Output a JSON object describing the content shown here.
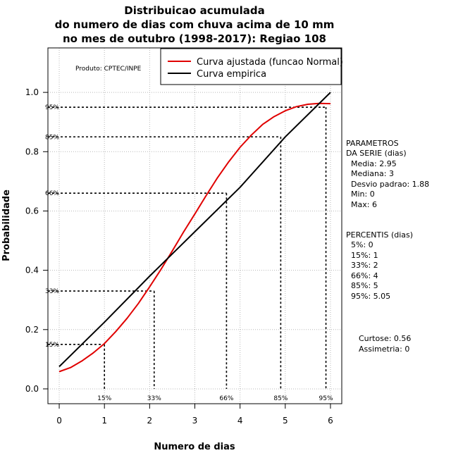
{
  "chart_data": {
    "type": "line",
    "title_lines": [
      "Distribuicao acumulada",
      "do numero de dias com chuva acima de 10 mm",
      "no mes de outubro (1998-2017): Regiao 108"
    ],
    "xlabel": "Numero de dias",
    "ylabel": "Probabilidade",
    "xlim": [
      -0.25,
      6.25
    ],
    "ylim": [
      -0.05,
      1.15
    ],
    "x_ticks": [
      0,
      1,
      2,
      3,
      4,
      5,
      6
    ],
    "y_ticks": [
      0.0,
      0.2,
      0.4,
      0.6,
      0.8,
      1.0
    ],
    "x_tick_labels": [
      "0",
      "1",
      "2",
      "3",
      "4",
      "5",
      "6"
    ],
    "y_tick_labels": [
      "0.0",
      "0.2",
      "0.4",
      "0.6",
      "0.8",
      "1.0"
    ],
    "grid": true,
    "producer_note": "Produto: CPTEC/INPE",
    "legend": {
      "position": "top-right",
      "entries": [
        {
          "name": "Curva ajustada (funcao Normal)",
          "color": "#e00000"
        },
        {
          "name": "Curva empirica",
          "color": "#000000"
        }
      ]
    },
    "series": [
      {
        "name": "Curva ajustada (funcao Normal)",
        "color": "#e00000",
        "x": [
          0,
          0.25,
          0.5,
          0.75,
          1.0,
          1.25,
          1.5,
          1.75,
          2.0,
          2.25,
          2.5,
          2.75,
          3.0,
          3.25,
          3.5,
          3.75,
          4.0,
          4.25,
          4.5,
          4.75,
          5.0,
          5.25,
          5.5,
          5.75,
          6.0
        ],
        "y": [
          0.058,
          0.072,
          0.094,
          0.121,
          0.153,
          0.193,
          0.238,
          0.288,
          0.344,
          0.403,
          0.465,
          0.529,
          0.59,
          0.652,
          0.712,
          0.766,
          0.815,
          0.856,
          0.892,
          0.918,
          0.938,
          0.952,
          0.96,
          0.963,
          0.962
        ]
      },
      {
        "name": "Curva empirica",
        "color": "#000000",
        "x": [
          0,
          1,
          2,
          3,
          4,
          5,
          6
        ],
        "y": [
          0.075,
          0.225,
          0.38,
          0.53,
          0.68,
          0.85,
          1.0
        ]
      }
    ],
    "percentile_markers": [
      {
        "label": "15%",
        "x": 1.0,
        "y": 0.15
      },
      {
        "label": "33%",
        "x": 2.1,
        "y": 0.33
      },
      {
        "label": "66%",
        "x": 3.7,
        "y": 0.66
      },
      {
        "label": "85%",
        "x": 4.9,
        "y": 0.85
      },
      {
        "label": "95%",
        "x": 5.9,
        "y": 0.95
      }
    ],
    "side_panel": {
      "parametros_lines": [
        "PARAMETROS",
        "DA SERIE (dias)",
        "Media: 2.95",
        "Mediana: 3",
        "Desvio padrao: 1.88",
        "Min: 0",
        "Max: 6"
      ],
      "percentis_lines": [
        "PERCENTIS (dias)",
        "5%: 0",
        "15%: 1",
        "33%: 2",
        "66%: 4",
        "85%: 5",
        "95%: 5.05"
      ],
      "curtose": "Curtose: 0.56",
      "assimetria": "Assimetria: 0"
    }
  }
}
